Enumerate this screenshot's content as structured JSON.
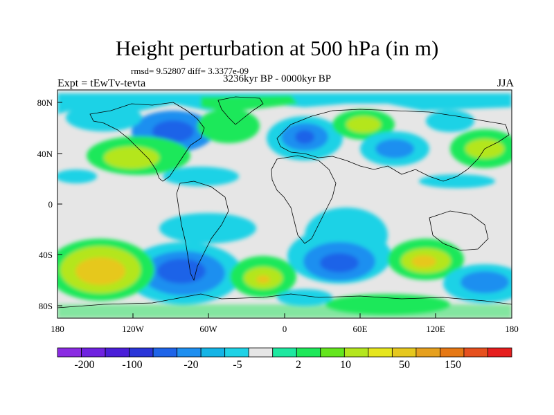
{
  "title": "Height perturbation at 500 hPa (in m)",
  "stats": "rmsd= 9.52807 diff= 3.3377e-09",
  "experiment": "Expt = tEwTv-tevta",
  "period": "3236kyr BP - 0000kyr BP",
  "season": "JJA",
  "x_ticks": [
    "180",
    "120W",
    "60W",
    "0",
    "60E",
    "120E",
    "180"
  ],
  "y_ticks": [
    "80N",
    "40N",
    "0",
    "40S",
    "80S"
  ],
  "colorbar": {
    "colors": [
      "#8a2be2",
      "#6f22e0",
      "#4a1ed8",
      "#2a35d8",
      "#1e64e8",
      "#1e8ff0",
      "#14b4e6",
      "#1ed2e6",
      "#e6e6e6",
      "#1ee8a0",
      "#1ee85a",
      "#64e61e",
      "#b4e61e",
      "#e6e61e",
      "#e6c81e",
      "#e6a01e",
      "#e67814",
      "#e6501e",
      "#e61e1e"
    ],
    "labels": [
      "-200",
      "-100",
      "-20",
      "-5",
      "2",
      "10",
      "50",
      "150"
    ]
  },
  "palette": {
    "background": "#e6e6e6",
    "coast": "#000000"
  }
}
